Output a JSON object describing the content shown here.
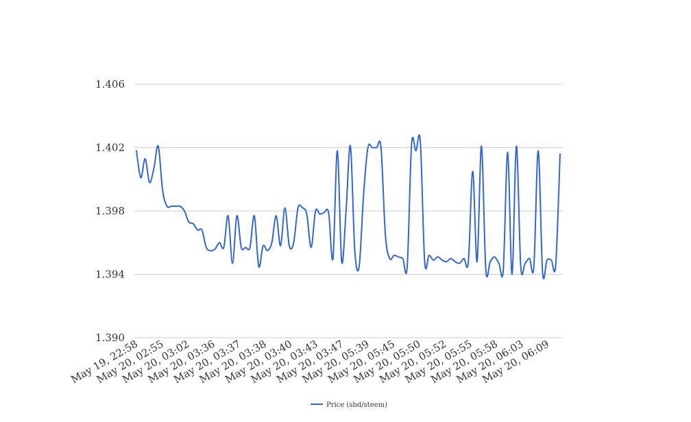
{
  "chart_data": {
    "type": "line",
    "title": "",
    "xlabel": "",
    "ylabel": "",
    "ylim": [
      1.39,
      1.406
    ],
    "y_ticks": [
      "1.406",
      "1.402",
      "1.398",
      "1.394",
      "1.390"
    ],
    "y_tick_values": [
      1.406,
      1.402,
      1.398,
      1.394,
      1.39
    ],
    "grid": true,
    "legend_position": "bottom",
    "x_tick_labels": [
      "May 19, 22:58",
      "May 20, 02:55",
      "May 20, 03:02",
      "May 20, 03:36",
      "May 20, 03:37",
      "May 20, 03:38",
      "May 20, 03:40",
      "May 20, 03:43",
      "May 20, 03:47",
      "May 20, 05:39",
      "May 20, 05:45",
      "May 20, 05:50",
      "May 20, 05:52",
      "May 20, 05:55",
      "May 20, 05:58",
      "May 20, 06:03",
      "May 20, 06:09"
    ],
    "series": [
      {
        "name": "Price (sbd/steem)",
        "color": "#3366cc",
        "values": [
          1.4018,
          1.4001,
          1.4013,
          1.3998,
          1.4007,
          1.4021,
          1.3993,
          1.3983,
          1.3983,
          1.3983,
          1.3983,
          1.398,
          1.3973,
          1.3972,
          1.3968,
          1.3968,
          1.3957,
          1.3955,
          1.3956,
          1.396,
          1.3957,
          1.3977,
          1.3947,
          1.3977,
          1.3957,
          1.3957,
          1.3957,
          1.3977,
          1.3945,
          1.3958,
          1.3955,
          1.396,
          1.3977,
          1.3958,
          1.3982,
          1.3958,
          1.396,
          1.3982,
          1.3982,
          1.3978,
          1.3957,
          1.398,
          1.3978,
          1.3979,
          1.3979,
          1.395,
          1.4018,
          1.3948,
          1.398,
          1.4021,
          1.3955,
          1.3945,
          1.399,
          1.402,
          1.402,
          1.402,
          1.402,
          1.3965,
          1.395,
          1.3952,
          1.3951,
          1.395,
          1.3945,
          1.4022,
          1.4018,
          1.4024,
          1.3948,
          1.3952,
          1.3949,
          1.3951,
          1.3949,
          1.3948,
          1.395,
          1.3948,
          1.3947,
          1.395,
          1.3948,
          1.4005,
          1.3948,
          1.4021,
          1.3943,
          1.3948,
          1.3951,
          1.3947,
          1.3943,
          1.4017,
          1.394,
          1.4021,
          1.3945,
          1.3947,
          1.395,
          1.3945,
          1.4018,
          1.3941,
          1.3949,
          1.3949,
          1.3946,
          1.4016
        ]
      }
    ]
  }
}
